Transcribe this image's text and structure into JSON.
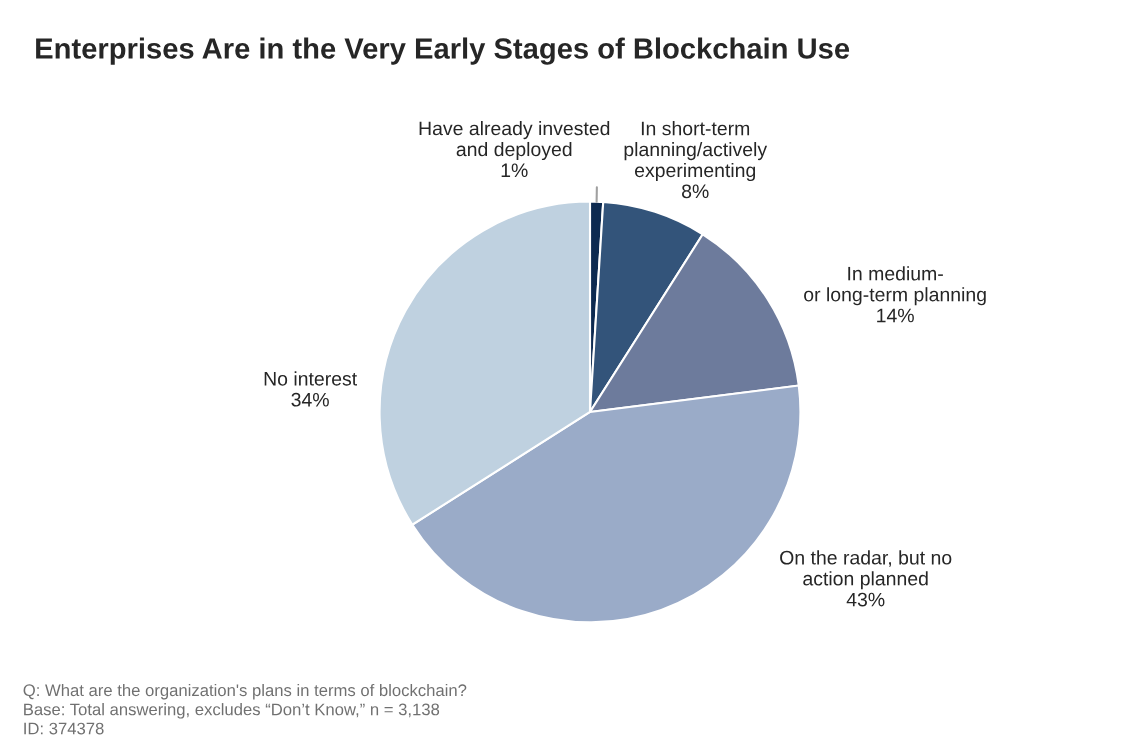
{
  "chart_data": {
    "type": "pie",
    "title": "Enterprises Are in the Very Early Stages of Blockchain Use",
    "categories": [
      "Have already invested\nand deployed",
      "In short-term\nplanning/actively\nexperimenting",
      "In medium-\nor long-term planning",
      "On the radar, but no\naction planned",
      "No interest"
    ],
    "values": [
      1,
      8,
      14,
      43,
      34
    ],
    "value_labels": [
      "1%",
      "8%",
      "14%",
      "43%",
      "34%"
    ],
    "colors": [
      "#0d2a50",
      "#33547a",
      "#6d7b9c",
      "#9aabc8",
      "#bfd1e0"
    ],
    "annotations": [
      "Q: What are the organization's plans in terms of blockchain?\nBase: Total answering, excludes “Don’t Know,” n = 3,138\nID: 374378"
    ]
  }
}
